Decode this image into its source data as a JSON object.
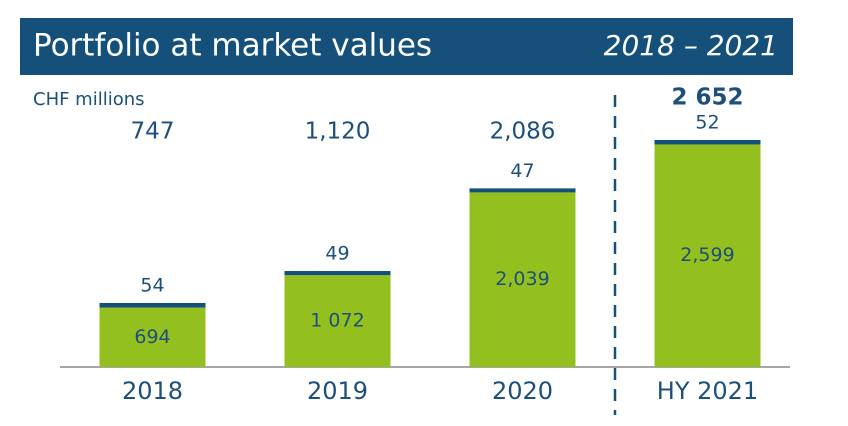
{
  "chart_data": {
    "type": "stacked-bar",
    "title": "Portfolio at market values",
    "subtitle": "2018 – 2021",
    "unit_label": "CHF millions",
    "categories": [
      "2018",
      "2019",
      "2020",
      "HY 2021"
    ],
    "series": [
      {
        "color": "#93c01f",
        "values": [
          694,
          1072,
          2039,
          2599
        ],
        "value_labels": [
          "694",
          "1 072",
          "2,039",
          "2,599"
        ]
      },
      {
        "color": "#14507a",
        "values": [
          54,
          49,
          47,
          52
        ]
      }
    ],
    "totals": {
      "values": [
        747,
        1120,
        2086,
        2652
      ],
      "value_labels": [
        "747",
        "1,120",
        "2,086",
        "2 652"
      ]
    }
  }
}
